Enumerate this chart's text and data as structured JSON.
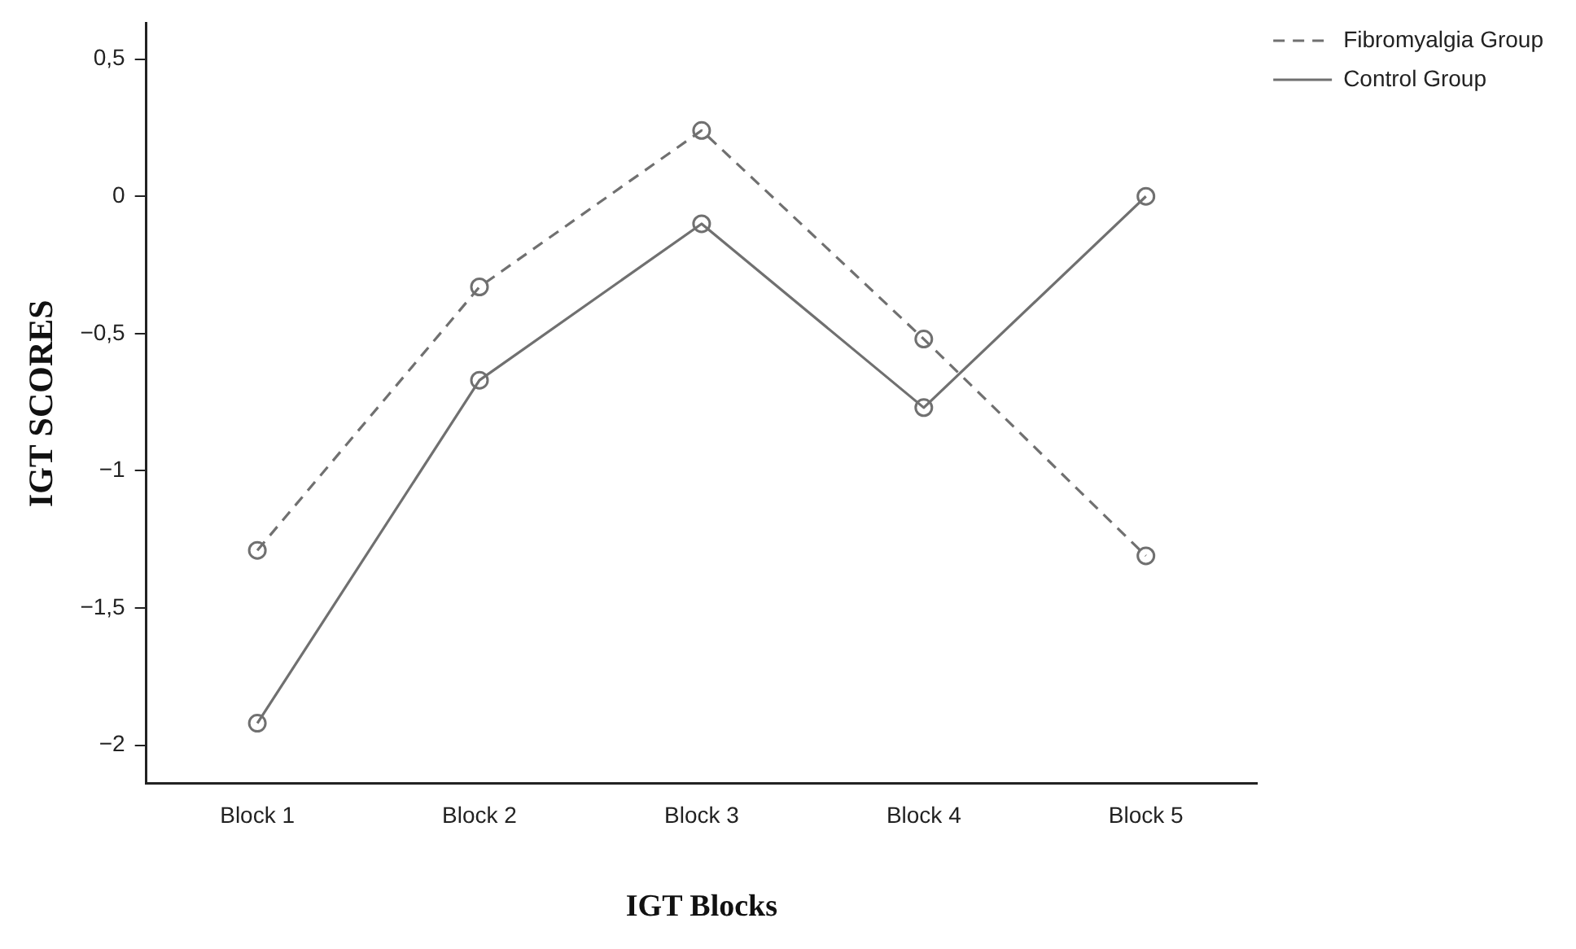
{
  "chart_data": {
    "type": "line",
    "xlabel": "IGT Blocks",
    "ylabel": "IGT SCORES",
    "categories": [
      "Block 1",
      "Block 2",
      "Block 3",
      "Block 4",
      "Block 5"
    ],
    "series": [
      {
        "name": "Fibromyalgia Group",
        "color": "#707070",
        "line_style": "dashed",
        "values": [
          -1.29,
          -0.33,
          0.24,
          -0.52,
          -1.31
        ]
      },
      {
        "name": "Control Group",
        "color": "#707070",
        "line_style": "solid",
        "values": [
          -1.92,
          -0.67,
          -0.1,
          -0.77,
          0
        ]
      }
    ],
    "ylim": [
      -2.14,
      0.63
    ],
    "yticks": [
      {
        "value": -2,
        "label": "−2"
      },
      {
        "value": -1.5,
        "label": "−1,5"
      },
      {
        "value": -1,
        "label": "−1"
      },
      {
        "value": -0.5,
        "label": "−0,5"
      },
      {
        "value": 0,
        "label": "0"
      },
      {
        "value": 0.5,
        "label": "0,5"
      }
    ],
    "grid": false,
    "legend": "top right",
    "marker": "circle"
  }
}
